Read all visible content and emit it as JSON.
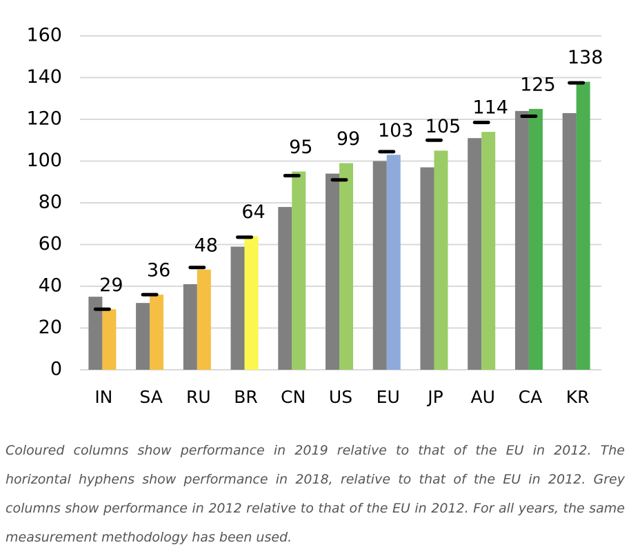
{
  "chart_data": {
    "type": "bar",
    "categories": [
      "IN",
      "SA",
      "RU",
      "BR",
      "CN",
      "US",
      "EU",
      "JP",
      "AU",
      "CA",
      "KR"
    ],
    "series": [
      {
        "color": "#808080",
        "values": [
          35,
          32,
          41,
          59,
          78,
          94,
          100,
          97,
          111,
          124,
          123
        ]
      },
      {
        "colors": [
          "#f4bf42",
          "#f4bf42",
          "#f4bf42",
          "#fbf74e",
          "#9ccc65",
          "#9ccc65",
          "#8eaadb",
          "#9ccc65",
          "#9ccc65",
          "#4caf50",
          "#4caf50"
        ],
        "values": [
          29,
          36,
          48,
          64,
          95,
          99,
          103,
          105,
          114,
          125,
          138
        ]
      }
    ],
    "markers": {
      "color": "#000000",
      "values": [
        29,
        36,
        49,
        63.5,
        93,
        91,
        104.5,
        110,
        118.5,
        121.5,
        137.5
      ]
    },
    "ylim": [
      0,
      160
    ],
    "yticks": [
      0,
      20,
      40,
      60,
      80,
      100,
      120,
      140,
      160
    ],
    "grid": true,
    "caption": "Coloured columns show performance in 2019 relative to that of the EU in 2012. The horizontal hyphens show performance in 2018, relative to that of the EU in 2012. Grey columns show performance in 2012 relative to that of the EU in 2012. For all years, the same measurement methodology has been used."
  }
}
